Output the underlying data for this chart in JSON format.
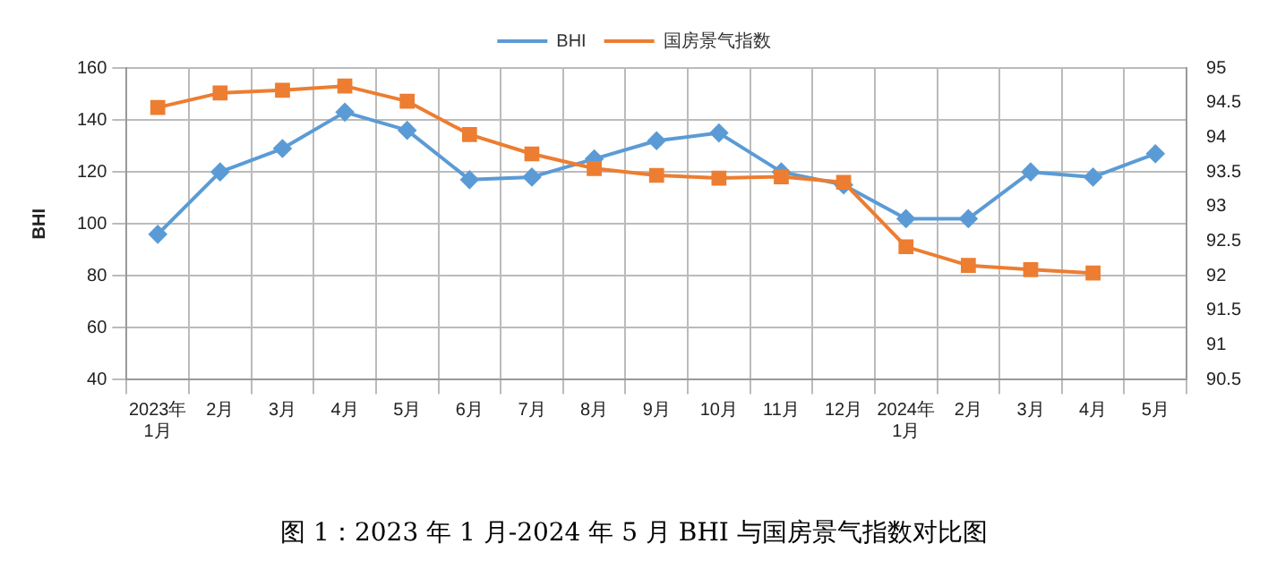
{
  "chart_data": {
    "type": "line",
    "title": "图 1：2023 年 1 月-2024 年 5 月 BHI 与国房景气指数对比图",
    "ylabel": "BHI",
    "categories": [
      "2023年\n1月",
      "2月",
      "3月",
      "4月",
      "5月",
      "6月",
      "7月",
      "8月",
      "9月",
      "10月",
      "11月",
      "12月",
      "2024年\n1月",
      "2月",
      "3月",
      "4月",
      "5月"
    ],
    "series": [
      {
        "name": "BHI",
        "color": "#5b9bd5",
        "marker": "diamond",
        "values": [
          96,
          120,
          129,
          143,
          136,
          117,
          118,
          125,
          132,
          135,
          120,
          115,
          102,
          102,
          120,
          118,
          127
        ]
      },
      {
        "name": "国房景气指数",
        "color": "#ed7d31",
        "marker": "square",
        "axis": "y2",
        "values": [
          94.43,
          94.64,
          94.68,
          94.74,
          94.52,
          94.04,
          93.76,
          93.55,
          93.45,
          93.41,
          93.43,
          93.35,
          92.42,
          92.15,
          92.09,
          92.04,
          null
        ]
      }
    ],
    "ylim": [
      40,
      160
    ],
    "yticks": [
      40,
      60,
      80,
      100,
      120,
      140,
      160
    ],
    "y2lim": [
      90.5,
      95
    ],
    "y2ticks": [
      90.5,
      91,
      91.5,
      92,
      92.5,
      93,
      93.5,
      94,
      94.5,
      95
    ],
    "grid": true,
    "legend": "top"
  }
}
